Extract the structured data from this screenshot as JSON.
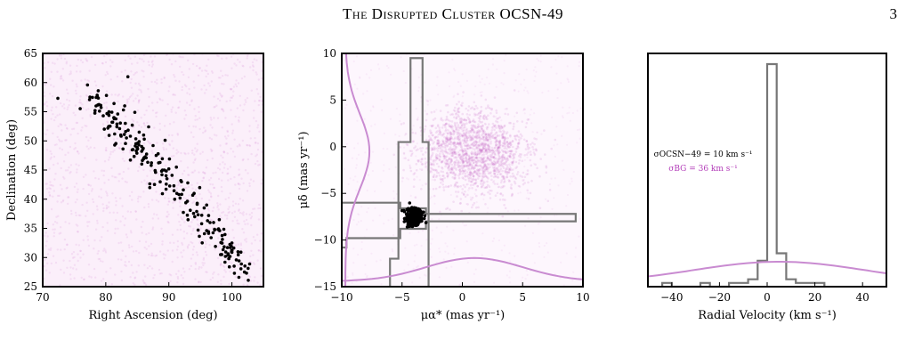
{
  "header": {
    "running_title": "The Disrupted Cluster OCSN-49",
    "page_number": "3"
  },
  "colors": {
    "background_scatter": "#c257c2",
    "member_points": "#000000",
    "member_histogram": "#777777",
    "background_histogram": "#c98bd1"
  },
  "chart_data": [
    {
      "type": "scatter",
      "title": "",
      "xlabel": "Right Ascension (deg)",
      "ylabel": "Declination (deg)",
      "xlim": [
        70,
        105
      ],
      "ylim": [
        25,
        65
      ],
      "xticks": [
        "70",
        "80",
        "90",
        "100"
      ],
      "yticks": [
        "25",
        "30",
        "35",
        "40",
        "45",
        "50",
        "55",
        "60",
        "65"
      ],
      "background": "uniform field density",
      "series": [
        {
          "x": [
            72.4,
            77.1,
            77.5,
            78.3,
            78.8,
            79.2,
            79.6,
            80.1,
            80.5,
            81.0,
            81.3,
            81.9,
            82.2,
            82.8,
            83.1,
            83.5,
            83.9,
            84.2,
            84.6,
            85.0,
            85.3,
            85.7,
            86.1,
            86.4,
            86.8,
            87.2,
            87.5,
            87.9,
            88.3,
            88.6,
            89.0,
            89.4,
            89.7,
            90.1,
            90.5,
            90.8,
            91.2,
            91.6,
            91.9,
            92.3,
            92.7,
            93.0,
            93.4,
            93.8,
            94.1,
            94.5,
            94.9,
            95.2,
            95.6,
            96.0,
            96.3,
            96.7,
            97.1,
            97.4,
            97.8,
            98.2,
            98.5,
            98.9,
            99.3,
            99.6,
            100.0,
            100.4,
            100.7,
            101.1,
            101.5,
            102.0,
            102.6,
            83.0,
            86.0,
            88.0,
            90.0,
            92.0,
            94.0,
            96.0,
            98.0,
            100.0
          ],
          "y": [
            57.3,
            59.6,
            57.5,
            55.2,
            58.6,
            56.1,
            54.3,
            57.8,
            55.0,
            53.2,
            56.4,
            54.6,
            52.1,
            55.3,
            53.0,
            61.0,
            50.8,
            52.7,
            54.9,
            49.6,
            51.5,
            48.2,
            50.3,
            47.1,
            52.4,
            45.8,
            49.2,
            44.6,
            47.8,
            46.3,
            45.0,
            50.1,
            43.5,
            46.9,
            44.1,
            42.3,
            45.5,
            40.8,
            43.2,
            41.6,
            39.4,
            42.8,
            38.1,
            40.7,
            37.0,
            39.3,
            42.0,
            35.8,
            38.5,
            34.6,
            37.2,
            33.4,
            36.0,
            31.9,
            34.8,
            30.5,
            33.1,
            29.2,
            31.7,
            28.4,
            30.9,
            27.3,
            29.6,
            26.6,
            28.9,
            27.5,
            26.1,
            56.0,
            51.0,
            47.5,
            45.2,
            43.0,
            41.0,
            39.0,
            36.5,
            32.5
          ]
        }
      ]
    },
    {
      "type": "scatter",
      "title": "",
      "xlabel": "μα* (mas yr⁻¹)",
      "ylabel": "μδ (mas yr⁻¹)",
      "xlim": [
        -10,
        10
      ],
      "ylim": [
        -15,
        10
      ],
      "xticks": [
        "−10",
        "−5",
        "0",
        "5",
        "10"
      ],
      "yticks": [
        "−15",
        "−10",
        "−5",
        "0",
        "5",
        "10"
      ],
      "background": "field stars centred near (1, -0.5) with marginal histograms",
      "member_center": [
        -4,
        -7.5
      ],
      "series": [
        {
          "name": "members",
          "x_center": -4.0,
          "y_center": -7.5,
          "x_spread": 0.5,
          "y_spread": 0.7
        }
      ]
    },
    {
      "type": "bar",
      "title": "",
      "xlabel": "Radial Velocity (km s⁻¹)",
      "ylabel": "",
      "xlim": [
        -50,
        50
      ],
      "xticks": [
        "−40",
        "−20",
        "0",
        "20",
        "40"
      ],
      "annotations": [
        {
          "text": "σOCSN−49 = 10 km s⁻¹",
          "color": "#000000"
        },
        {
          "text": "σBG = 36 km s⁻¹",
          "color": "#b23ab8"
        }
      ],
      "series": [
        {
          "name": "",
          "bin_edges": [
            -44,
            -40,
            -36,
            -32,
            -28,
            -24,
            -20,
            -16,
            -12,
            -8,
            -4,
            0,
            4,
            8,
            12,
            16,
            20,
            24
          ],
          "values": [
            1,
            0,
            0,
            0,
            1,
            0,
            0,
            1,
            1,
            2,
            7,
            60,
            9,
            2,
            1,
            1,
            1
          ]
        },
        {
          "name": "",
          "shape": "broad gaussian",
          "center": 5,
          "sigma": 36
        }
      ]
    }
  ]
}
